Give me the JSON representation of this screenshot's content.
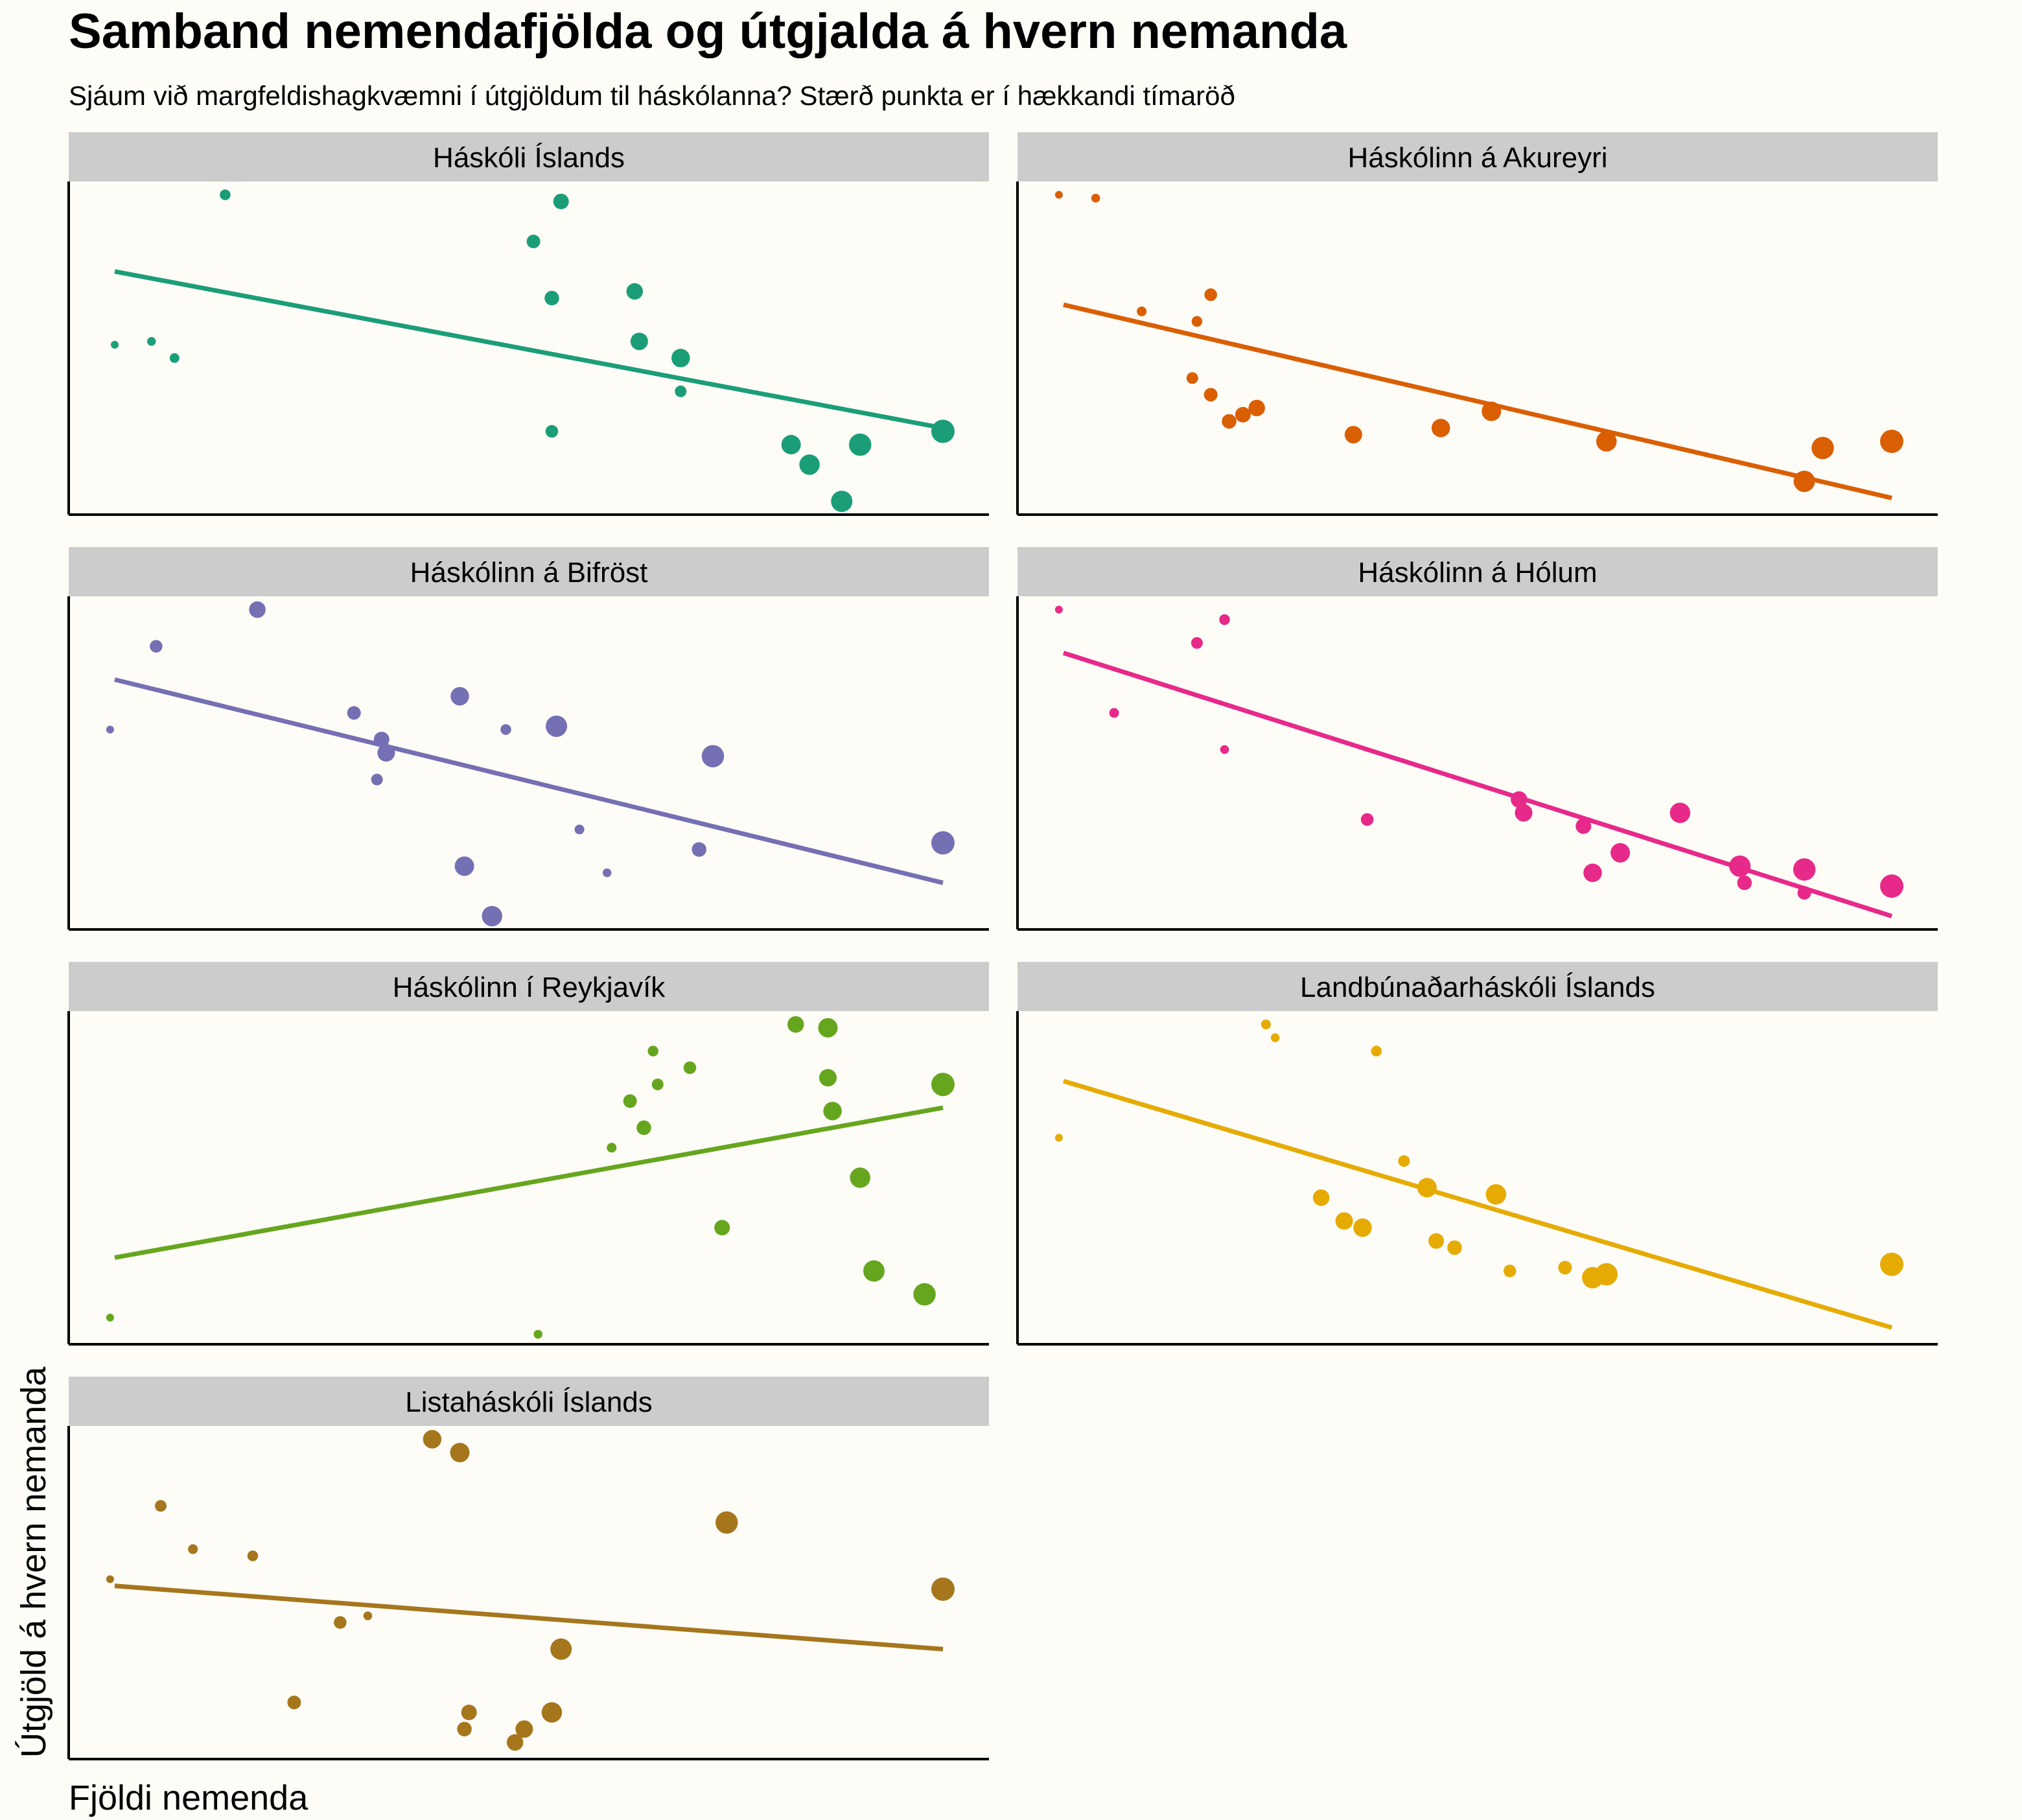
{
  "title": "Samband nemendafjölda og útgjalda á hvern nemanda",
  "subtitle": "Sjáum við margfeldishagkvæmni í útgjöldum til háskólanna? Stærð punkta er í hækkandi tímaröð",
  "xlabel": "Fjöldi nemenda",
  "ylabel": "Útgjöld á hvern nemanda",
  "chart_data": {
    "type": "scatter",
    "facets": true,
    "ncol": 2,
    "xlabel": "Fjöldi nemenda",
    "ylabel": "Útgjöld á hvern nemanda",
    "axis_ticks": "none",
    "grid": false,
    "note": "",
    "panels": [
      {
        "name": "Háskóli Íslands",
        "color": "#1B9E77",
        "trend": [
          [
            0.05,
            0.73
          ],
          [
            0.95,
            0.26
          ]
        ],
        "points": [
          [
            0.05,
            0.51,
            1
          ],
          [
            0.09,
            0.52,
            2
          ],
          [
            0.115,
            0.47,
            3
          ],
          [
            0.17,
            0.96,
            4
          ],
          [
            0.505,
            0.82,
            7
          ],
          [
            0.525,
            0.65,
            8
          ],
          [
            0.525,
            0.25,
            6
          ],
          [
            0.535,
            0.94,
            9
          ],
          [
            0.615,
            0.67,
            10
          ],
          [
            0.62,
            0.52,
            11
          ],
          [
            0.665,
            0.47,
            12
          ],
          [
            0.665,
            0.37,
            5
          ],
          [
            0.785,
            0.21,
            13
          ],
          [
            0.805,
            0.15,
            14
          ],
          [
            0.84,
            0.04,
            15
          ],
          [
            0.86,
            0.21,
            16
          ],
          [
            0.95,
            0.25,
            17
          ]
        ]
      },
      {
        "name": "Háskólinn á Akureyri",
        "color": "#D95F02",
        "trend": [
          [
            0.05,
            0.63
          ],
          [
            0.95,
            0.05
          ]
        ],
        "points": [
          [
            0.045,
            0.96,
            1
          ],
          [
            0.085,
            0.95,
            2
          ],
          [
            0.135,
            0.61,
            3
          ],
          [
            0.195,
            0.58,
            4
          ],
          [
            0.19,
            0.41,
            5
          ],
          [
            0.21,
            0.66,
            6
          ],
          [
            0.21,
            0.36,
            7
          ],
          [
            0.23,
            0.28,
            8
          ],
          [
            0.245,
            0.3,
            9
          ],
          [
            0.26,
            0.32,
            10
          ],
          [
            0.365,
            0.24,
            11
          ],
          [
            0.46,
            0.26,
            12
          ],
          [
            0.515,
            0.31,
            13
          ],
          [
            0.64,
            0.22,
            14
          ],
          [
            0.855,
            0.1,
            15
          ],
          [
            0.875,
            0.2,
            16
          ],
          [
            0.95,
            0.22,
            17
          ]
        ]
      },
      {
        "name": "Háskólinn á Bifröst",
        "color": "#7570B3",
        "trend": [
          [
            0.05,
            0.75
          ],
          [
            0.95,
            0.14
          ]
        ],
        "points": [
          [
            0.045,
            0.6,
            1
          ],
          [
            0.095,
            0.85,
            6
          ],
          [
            0.205,
            0.96,
            10
          ],
          [
            0.31,
            0.65,
            7
          ],
          [
            0.34,
            0.57,
            9
          ],
          [
            0.345,
            0.53,
            11
          ],
          [
            0.335,
            0.45,
            5
          ],
          [
            0.425,
            0.7,
            12
          ],
          [
            0.43,
            0.19,
            13
          ],
          [
            0.46,
            0.04,
            14
          ],
          [
            0.475,
            0.6,
            4
          ],
          [
            0.53,
            0.61,
            15
          ],
          [
            0.555,
            0.3,
            3
          ],
          [
            0.585,
            0.17,
            2
          ],
          [
            0.685,
            0.24,
            8
          ],
          [
            0.7,
            0.52,
            16
          ],
          [
            0.95,
            0.26,
            17
          ]
        ]
      },
      {
        "name": "Háskólinn á Hólum",
        "color": "#E7298A",
        "trend": [
          [
            0.05,
            0.83
          ],
          [
            0.95,
            0.04
          ]
        ],
        "points": [
          [
            0.045,
            0.96,
            1
          ],
          [
            0.105,
            0.65,
            3
          ],
          [
            0.195,
            0.86,
            5
          ],
          [
            0.225,
            0.93,
            4
          ],
          [
            0.225,
            0.54,
            2
          ],
          [
            0.38,
            0.33,
            6
          ],
          [
            0.545,
            0.39,
            10
          ],
          [
            0.55,
            0.35,
            11
          ],
          [
            0.615,
            0.31,
            9
          ],
          [
            0.625,
            0.17,
            12
          ],
          [
            0.655,
            0.23,
            13
          ],
          [
            0.72,
            0.35,
            14
          ],
          [
            0.785,
            0.19,
            15
          ],
          [
            0.79,
            0.14,
            8
          ],
          [
            0.855,
            0.18,
            16
          ],
          [
            0.855,
            0.11,
            7
          ],
          [
            0.95,
            0.13,
            17
          ]
        ]
      },
      {
        "name": "Háskólinn í Reykjavík",
        "color": "#66A61E",
        "trend": [
          [
            0.05,
            0.26
          ],
          [
            0.95,
            0.71
          ]
        ],
        "points": [
          [
            0.045,
            0.08,
            1
          ],
          [
            0.51,
            0.03,
            2
          ],
          [
            0.59,
            0.59,
            3
          ],
          [
            0.61,
            0.73,
            7
          ],
          [
            0.625,
            0.65,
            8
          ],
          [
            0.635,
            0.88,
            4
          ],
          [
            0.64,
            0.78,
            5
          ],
          [
            0.675,
            0.83,
            6
          ],
          [
            0.71,
            0.35,
            9
          ],
          [
            0.79,
            0.96,
            10
          ],
          [
            0.825,
            0.8,
            11
          ],
          [
            0.83,
            0.7,
            12
          ],
          [
            0.825,
            0.95,
            13
          ],
          [
            0.86,
            0.5,
            14
          ],
          [
            0.875,
            0.22,
            15
          ],
          [
            0.93,
            0.15,
            16
          ],
          [
            0.95,
            0.78,
            17
          ]
        ]
      },
      {
        "name": "Landbúnaðarháskóli Íslands",
        "color": "#E6AB02",
        "trend": [
          [
            0.05,
            0.79
          ],
          [
            0.95,
            0.05
          ]
        ],
        "points": [
          [
            0.045,
            0.62,
            1
          ],
          [
            0.27,
            0.96,
            3
          ],
          [
            0.28,
            0.92,
            2
          ],
          [
            0.39,
            0.88,
            4
          ],
          [
            0.33,
            0.44,
            10
          ],
          [
            0.355,
            0.37,
            11
          ],
          [
            0.375,
            0.35,
            12
          ],
          [
            0.42,
            0.55,
            5
          ],
          [
            0.445,
            0.47,
            13
          ],
          [
            0.455,
            0.31,
            9
          ],
          [
            0.475,
            0.29,
            8
          ],
          [
            0.52,
            0.45,
            14
          ],
          [
            0.535,
            0.22,
            6
          ],
          [
            0.595,
            0.23,
            7
          ],
          [
            0.625,
            0.2,
            15
          ],
          [
            0.64,
            0.21,
            16
          ],
          [
            0.95,
            0.24,
            17
          ]
        ]
      },
      {
        "name": "Listaháskóli Íslands",
        "color": "#A6761D",
        "trend": [
          [
            0.05,
            0.52
          ],
          [
            0.95,
            0.33
          ]
        ],
        "points": [
          [
            0.045,
            0.54,
            1
          ],
          [
            0.1,
            0.76,
            5
          ],
          [
            0.135,
            0.63,
            3
          ],
          [
            0.2,
            0.61,
            4
          ],
          [
            0.245,
            0.17,
            7
          ],
          [
            0.295,
            0.41,
            6
          ],
          [
            0.325,
            0.43,
            2
          ],
          [
            0.395,
            0.96,
            12
          ],
          [
            0.425,
            0.92,
            13
          ],
          [
            0.43,
            0.09,
            8
          ],
          [
            0.435,
            0.14,
            9
          ],
          [
            0.485,
            0.05,
            10
          ],
          [
            0.495,
            0.09,
            11
          ],
          [
            0.525,
            0.14,
            14
          ],
          [
            0.535,
            0.33,
            15
          ],
          [
            0.715,
            0.71,
            16
          ],
          [
            0.95,
            0.51,
            17
          ]
        ]
      }
    ]
  }
}
